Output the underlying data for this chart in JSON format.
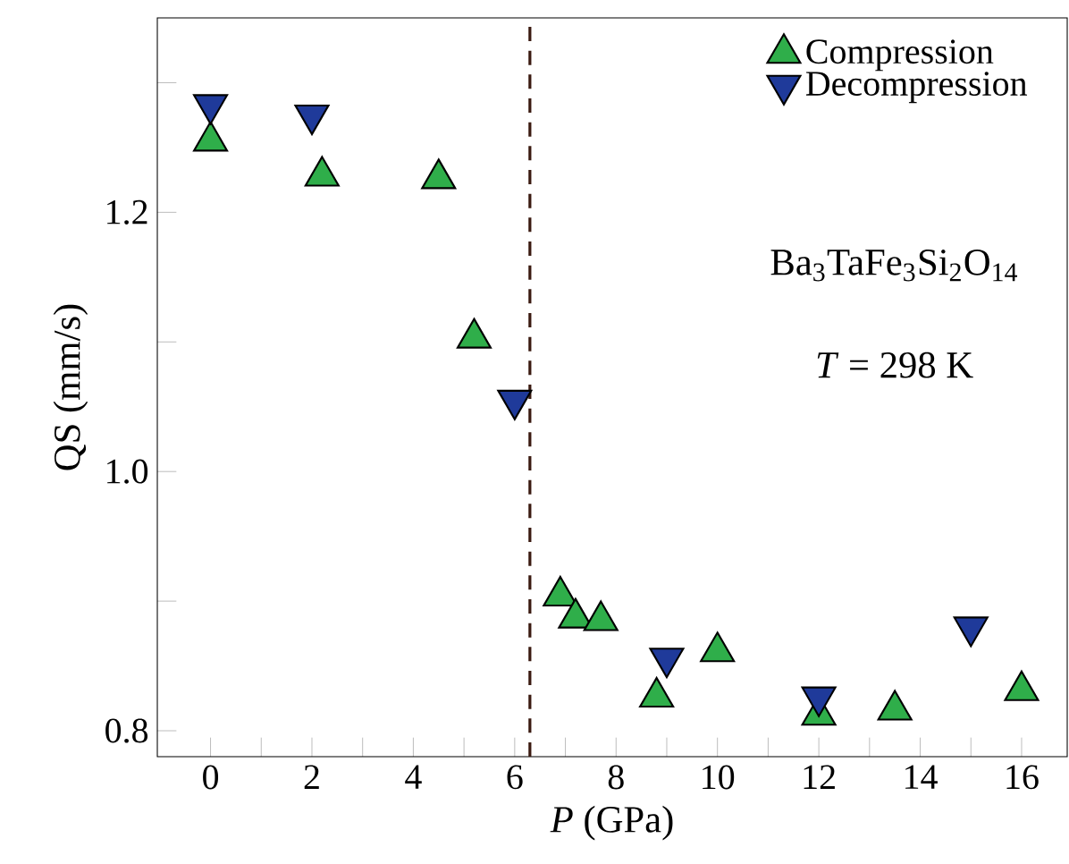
{
  "chart_data": {
    "type": "scatter",
    "xlabel": "*P* (GPa)",
    "ylabel": "QS (mm/s)",
    "series": [
      {
        "name": "Compression",
        "color": "#2fae4a",
        "marker": "triangle",
        "x": [
          0,
          2.2,
          4.5,
          5.2,
          6.9,
          7.2,
          7.7,
          8.8,
          10,
          12,
          13.5,
          16
        ],
        "values": [
          1.255,
          1.228,
          1.226,
          1.103,
          0.904,
          0.887,
          0.885,
          0.826,
          0.861,
          0.812,
          0.816,
          0.831
        ]
      },
      {
        "name": "Decompression",
        "color": "#1f3a9a",
        "marker": "triangle-down",
        "x": [
          0,
          2,
          6,
          9,
          12,
          15
        ],
        "values": [
          1.283,
          1.275,
          1.055,
          0.856,
          0.826,
          0.88
        ]
      }
    ],
    "xlim": [
      -1.05,
      16.9
    ],
    "ylim": [
      0.78,
      1.35
    ],
    "xticks": [
      0,
      {
        "value": 1,
        "label": null
      },
      2,
      {
        "value": 3,
        "label": null
      },
      4,
      {
        "value": 5,
        "label": null
      },
      6,
      {
        "value": 7,
        "label": null
      },
      8,
      {
        "value": 9,
        "label": null
      },
      10,
      {
        "value": 11,
        "label": null
      },
      12,
      {
        "value": 13,
        "label": null
      },
      14,
      {
        "value": 15,
        "label": null
      },
      16
    ],
    "yticks": [
      {
        "value": 0.8,
        "label": "0.8"
      },
      {
        "value": 0.9,
        "label": null
      },
      {
        "value": 1.0,
        "label": "1.0"
      },
      {
        "value": 1.1,
        "label": null
      },
      {
        "value": 1.2,
        "label": "1.2"
      },
      {
        "value": 1.3,
        "label": null
      }
    ],
    "ref_lines": [
      {
        "axis": "x",
        "value": 6.3,
        "color": "#3a1a10",
        "line_style": "dashed"
      }
    ],
    "annotations": [
      "Ba$_{3}$TaFe$_{3}$Si$_{2}$O$_{14}$",
      "*T* = 298 K"
    ],
    "legend": "top right",
    "grid": false
  }
}
